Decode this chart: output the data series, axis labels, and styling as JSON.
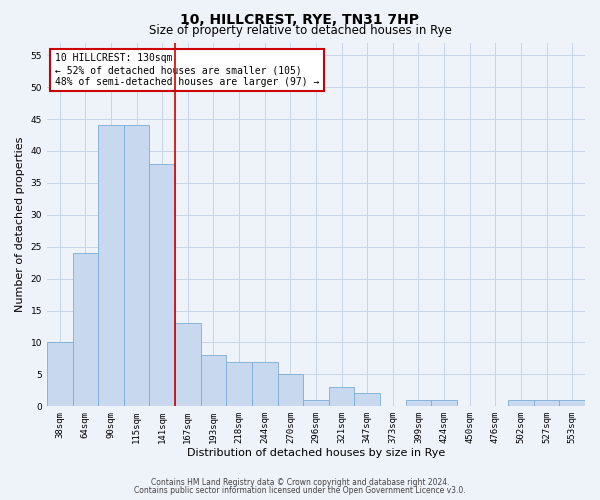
{
  "title": "10, HILLCREST, RYE, TN31 7HP",
  "subtitle": "Size of property relative to detached houses in Rye",
  "xlabel": "Distribution of detached houses by size in Rye",
  "ylabel": "Number of detached properties",
  "categories": [
    "38sqm",
    "64sqm",
    "90sqm",
    "115sqm",
    "141sqm",
    "167sqm",
    "193sqm",
    "218sqm",
    "244sqm",
    "270sqm",
    "296sqm",
    "321sqm",
    "347sqm",
    "373sqm",
    "399sqm",
    "424sqm",
    "450sqm",
    "476sqm",
    "502sqm",
    "527sqm",
    "553sqm"
  ],
  "values": [
    10,
    24,
    44,
    44,
    38,
    13,
    8,
    7,
    7,
    5,
    1,
    3,
    2,
    0,
    1,
    1,
    0,
    0,
    1,
    1,
    1
  ],
  "bar_color": "#c8d9ef",
  "bar_edge_color": "#7aadd4",
  "grid_color": "#c8d4e8",
  "background_color": "#eef2f9",
  "ylim": [
    0,
    57
  ],
  "yticks": [
    0,
    5,
    10,
    15,
    20,
    25,
    30,
    35,
    40,
    45,
    50,
    55
  ],
  "property_label": "10 HILLCREST: 130sqm",
  "annotation_line1": "← 52% of detached houses are smaller (105)",
  "annotation_line2": "48% of semi-detached houses are larger (97) →",
  "vline_position": 4.5,
  "vline_color": "#cc0000",
  "box_color": "#ffffff",
  "box_edge_color": "#cc0000",
  "footer_line1": "Contains HM Land Registry data © Crown copyright and database right 2024.",
  "footer_line2": "Contains public sector information licensed under the Open Government Licence v3.0.",
  "title_fontsize": 10,
  "subtitle_fontsize": 8.5,
  "tick_fontsize": 6.5,
  "ylabel_fontsize": 8,
  "xlabel_fontsize": 8,
  "annotation_fontsize": 7,
  "footer_fontsize": 5.5
}
